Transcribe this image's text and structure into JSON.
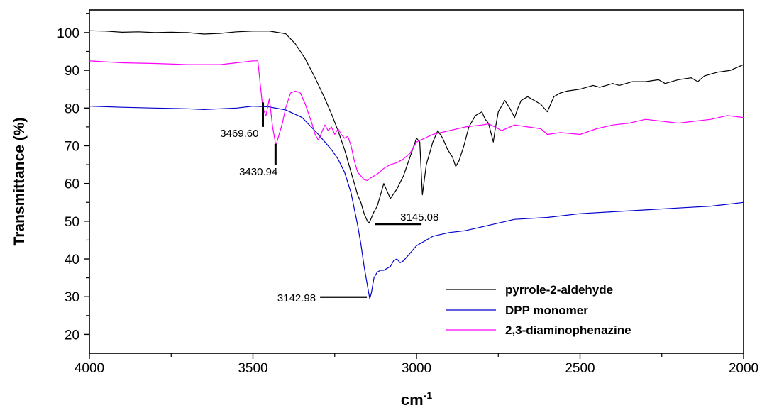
{
  "chart_data": {
    "type": "line",
    "title": "",
    "xlabel_base": "cm",
    "xlabel_sup": "-1",
    "ylabel": "Transmittance (%)",
    "xlim": [
      4000,
      2000
    ],
    "ylim": [
      15,
      106
    ],
    "x_ticks": [
      "4000",
      "3500",
      "3000",
      "2500",
      "2000"
    ],
    "y_ticks": [
      "20",
      "30",
      "40",
      "50",
      "60",
      "70",
      "80",
      "90",
      "100"
    ],
    "legend_position": "bottom-right",
    "series": [
      {
        "name": "pyrrole-2-aldehyde",
        "color": "#000000",
        "x": [
          4000,
          3950,
          3900,
          3850,
          3800,
          3750,
          3700,
          3650,
          3600,
          3550,
          3500,
          3450,
          3400,
          3370,
          3340,
          3310,
          3280,
          3260,
          3240,
          3220,
          3200,
          3180,
          3170,
          3160,
          3150,
          3145,
          3140,
          3130,
          3120,
          3110,
          3100,
          3090,
          3080,
          3060,
          3040,
          3020,
          3000,
          2990,
          2982,
          2970,
          2950,
          2935,
          2920,
          2905,
          2890,
          2880,
          2870,
          2855,
          2840,
          2820,
          2800,
          2790,
          2780,
          2765,
          2760,
          2750,
          2730,
          2715,
          2700,
          2690,
          2680,
          2660,
          2640,
          2620,
          2600,
          2590,
          2580,
          2560,
          2540,
          2500,
          2460,
          2440,
          2420,
          2400,
          2380,
          2340,
          2300,
          2260,
          2240,
          2200,
          2160,
          2140,
          2120,
          2080,
          2040,
          2000
        ],
        "y": [
          100.5,
          100.4,
          100.1,
          100.2,
          100.0,
          100.1,
          100.0,
          99.6,
          99.8,
          100.2,
          100.4,
          100.4,
          99.7,
          97.0,
          93.0,
          88.0,
          82.5,
          78.5,
          74.0,
          69.0,
          63.0,
          57.0,
          55.0,
          52.0,
          50.0,
          49.5,
          50.5,
          52.5,
          54.0,
          57.0,
          60.0,
          58.0,
          56.0,
          58.5,
          62.0,
          67.0,
          72.0,
          71.0,
          57.0,
          65.0,
          71.0,
          74.0,
          72.0,
          69.0,
          67.0,
          64.5,
          66.0,
          70.0,
          75.0,
          78.0,
          79.0,
          77.0,
          76.0,
          71.0,
          74.0,
          79.0,
          82.0,
          80.0,
          77.5,
          80.0,
          82.0,
          83.0,
          82.0,
          81.0,
          79.0,
          81.0,
          83.0,
          84.0,
          84.5,
          85.0,
          86.0,
          85.5,
          86.0,
          86.5,
          86.0,
          87.0,
          87.0,
          87.5,
          86.5,
          87.5,
          88.0,
          87.0,
          88.5,
          89.5,
          90.0,
          91.5
        ]
      },
      {
        "name": "DPP monomer",
        "color": "#0000cc",
        "x": [
          4000,
          3900,
          3800,
          3700,
          3650,
          3600,
          3550,
          3500,
          3450,
          3400,
          3350,
          3300,
          3260,
          3240,
          3220,
          3200,
          3180,
          3170,
          3160,
          3150,
          3143,
          3138,
          3130,
          3120,
          3110,
          3100,
          3090,
          3080,
          3070,
          3060,
          3050,
          3040,
          3020,
          3000,
          2980,
          2950,
          2900,
          2850,
          2800,
          2700,
          2600,
          2500,
          2400,
          2300,
          2200,
          2100,
          2000
        ],
        "y": [
          80.5,
          80.2,
          80.0,
          79.8,
          79.6,
          79.8,
          80.0,
          80.5,
          80.3,
          79.5,
          77.5,
          73.0,
          69.0,
          66.5,
          63.0,
          57.5,
          49.0,
          44.0,
          38.0,
          33.0,
          29.5,
          31.0,
          35.0,
          36.5,
          37.0,
          37.0,
          37.5,
          38.0,
          39.5,
          40.0,
          39.0,
          39.5,
          41.5,
          43.5,
          44.5,
          46.0,
          47.0,
          47.5,
          48.5,
          50.5,
          51.0,
          52.0,
          52.5,
          53.0,
          53.5,
          54.0,
          55.0
        ]
      },
      {
        "name": "2,3-diaminophenazine",
        "color": "#ff00ff",
        "x": [
          4000,
          3900,
          3800,
          3700,
          3600,
          3550,
          3500,
          3485,
          3470,
          3460,
          3450,
          3440,
          3430,
          3420,
          3410,
          3400,
          3385,
          3370,
          3355,
          3340,
          3320,
          3310,
          3300,
          3290,
          3280,
          3270,
          3260,
          3250,
          3240,
          3230,
          3220,
          3210,
          3200,
          3190,
          3180,
          3170,
          3160,
          3150,
          3140,
          3120,
          3100,
          3080,
          3060,
          3050,
          3040,
          3020,
          3000,
          2950,
          2900,
          2850,
          2800,
          2780,
          2760,
          2740,
          2700,
          2660,
          2620,
          2600,
          2560,
          2500,
          2450,
          2400,
          2350,
          2300,
          2250,
          2200,
          2150,
          2100,
          2050,
          2000
        ],
        "y": [
          92.5,
          92.0,
          91.8,
          91.5,
          91.5,
          92.0,
          92.5,
          92.5,
          80.0,
          78.0,
          82.5,
          75.0,
          70.0,
          73.0,
          76.0,
          80.0,
          84.0,
          84.5,
          84.0,
          81.0,
          76.0,
          73.0,
          71.5,
          73.5,
          75.5,
          74.0,
          75.0,
          73.0,
          74.5,
          73.0,
          72.0,
          72.5,
          70.0,
          66.0,
          63.0,
          62.0,
          61.0,
          60.8,
          61.5,
          62.5,
          64.0,
          65.0,
          65.5,
          66.0,
          66.5,
          68.0,
          71.0,
          73.0,
          74.0,
          75.0,
          75.5,
          75.8,
          75.0,
          74.0,
          75.5,
          75.0,
          74.5,
          73.0,
          73.5,
          73.0,
          74.5,
          75.5,
          76.0,
          77.0,
          76.5,
          76.0,
          76.5,
          77.0,
          78.0,
          77.5
        ]
      }
    ],
    "annotations": [
      {
        "text": "3469.60",
        "peak_x": 3469.6,
        "peak_y": 78.0
      },
      {
        "text": "3430.94",
        "peak_x": 3430.94,
        "peak_y": 70.0
      },
      {
        "text": "3145.08",
        "peak_x": 3145.08,
        "peak_y": 49.5
      },
      {
        "text": "3142.98",
        "peak_x": 3142.98,
        "peak_y": 29.5
      }
    ]
  }
}
